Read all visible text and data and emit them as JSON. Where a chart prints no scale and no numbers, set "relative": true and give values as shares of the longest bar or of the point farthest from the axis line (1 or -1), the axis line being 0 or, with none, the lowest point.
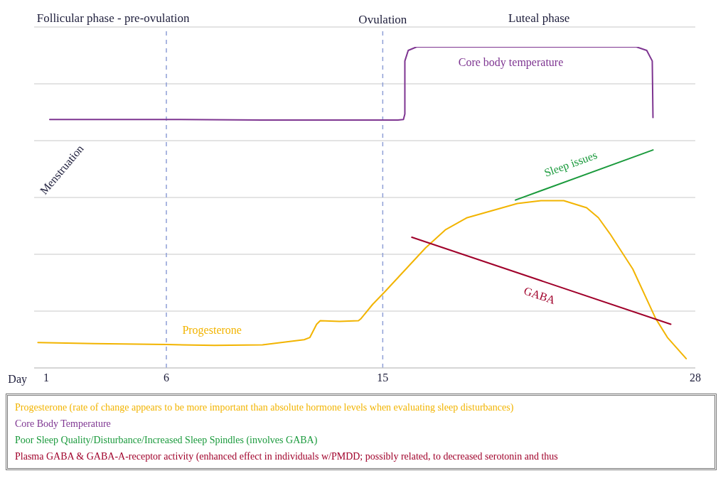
{
  "chart_data": {
    "type": "line",
    "relative": true,
    "xlabel": "Day",
    "xlim": [
      0.5,
      28
    ],
    "xticks": [
      1,
      6,
      15,
      28
    ],
    "series": [
      {
        "name": "Progesterone (rate of change appears to be more important than absolute hormone levels when evaluating sleep disturbances)",
        "color": "#f2b400",
        "x": [
          0.66,
          3,
          6,
          8,
          10,
          10.95,
          11.73,
          11.97,
          12.25,
          12.4,
          13.2,
          13.99,
          14.1,
          14.58,
          15.06,
          16.78,
          17.6,
          18.51,
          20.6,
          21.58,
          22.53,
          23.48,
          23.97,
          24.45,
          25.4,
          26.35,
          26.84,
          27.62
        ],
        "values": [
          0.079,
          0.076,
          0.073,
          0.07,
          0.072,
          0.081,
          0.088,
          0.095,
          0.136,
          0.147,
          0.145,
          0.147,
          0.154,
          0.198,
          0.235,
          0.374,
          0.43,
          0.468,
          0.512,
          0.521,
          0.521,
          0.499,
          0.468,
          0.418,
          0.308,
          0.154,
          0.095,
          0.029
        ]
      },
      {
        "name": "Core Body Temperature",
        "color": "#7e3591",
        "x": [
          1.15,
          6,
          10,
          15.63,
          15.86,
          15.92,
          15.92,
          16.06,
          16.41,
          20,
          25.55,
          25.98,
          26.21,
          26.24
        ],
        "values": [
          0.774,
          0.774,
          0.772,
          0.772,
          0.774,
          0.791,
          0.956,
          0.989,
          1.0,
          1.0,
          1.0,
          0.989,
          0.956,
          0.78
        ]
      },
      {
        "name": "Poor Sleep Quality/Disturbance/Increased Sleep Spindles (involves GABA)",
        "color": "#1a9a3c",
        "x": [
          20.52,
          26.24
        ],
        "values": [
          0.523,
          0.679
        ]
      },
      {
        "name": "Plasma GABA & GABA-A-receptor activity (enhanced effect in individuals w/PMDD; possibly related, to decreased serotonin and thus",
        "color": "#a0002a",
        "x": [
          16.21,
          26.98
        ],
        "values": [
          0.407,
          0.136
        ]
      }
    ],
    "ref_lines": [
      {
        "axis": "x",
        "value": 6,
        "color": "#8f9fd6",
        "line_style": "dashed"
      },
      {
        "axis": "x",
        "value": 15,
        "label": "Ovulation",
        "color": "#8f9fd6",
        "line_style": "dashed"
      }
    ],
    "annotations": [
      "Follicular phase - pre-ovulation",
      "Luteal phase",
      "Menstruation",
      "Core body temperature",
      "Sleep issues",
      "GABA",
      "Progesterone"
    ],
    "grid": "y",
    "legend": "bottom",
    "marker": "none",
    "line_style": "solid"
  }
}
